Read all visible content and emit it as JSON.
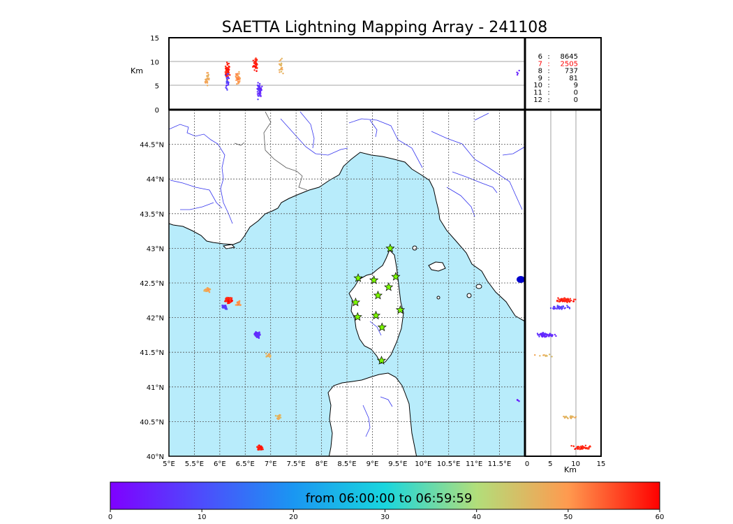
{
  "title": "SAETTA Lightning Mapping Array - 241108",
  "chart_data": [
    {
      "type": "scatter",
      "panel": "map",
      "x_ticks": [
        "5°E",
        "5.5°E",
        "6°E",
        "6.5°E",
        "7°E",
        "7.5°E",
        "8°E",
        "8.5°E",
        "9°E",
        "9.5°E",
        "10°E",
        "10.5°E",
        "11°E",
        "11.5°E"
      ],
      "y_ticks": [
        "40°N",
        "40.5°N",
        "41°N",
        "41.5°N",
        "42°N",
        "42.5°N",
        "43°N",
        "43.5°N",
        "44°N",
        "44.5°N"
      ],
      "xlim": [
        5,
        12
      ],
      "ylim": [
        40,
        45
      ],
      "grid": true,
      "stations": [
        {
          "lon": 9.35,
          "lat": 43.0
        },
        {
          "lon": 8.72,
          "lat": 42.57
        },
        {
          "lon": 9.03,
          "lat": 42.54
        },
        {
          "lon": 9.46,
          "lat": 42.59
        },
        {
          "lon": 9.11,
          "lat": 42.32
        },
        {
          "lon": 9.32,
          "lat": 42.44
        },
        {
          "lon": 8.67,
          "lat": 42.22
        },
        {
          "lon": 9.55,
          "lat": 42.11
        },
        {
          "lon": 8.71,
          "lat": 42.01
        },
        {
          "lon": 9.07,
          "lat": 42.03
        },
        {
          "lon": 9.19,
          "lat": 41.86
        },
        {
          "lon": 9.18,
          "lat": 41.38
        }
      ],
      "clusters": [
        {
          "lon": 5.75,
          "lat": 42.4,
          "minute": 48,
          "n": 30
        },
        {
          "lon": 6.18,
          "lat": 42.25,
          "minute": 58,
          "n": 80
        },
        {
          "lon": 6.1,
          "lat": 42.15,
          "minute": 8,
          "n": 25
        },
        {
          "lon": 6.38,
          "lat": 42.2,
          "minute": 50,
          "n": 20
        },
        {
          "lon": 6.75,
          "lat": 41.75,
          "minute": 6,
          "n": 90
        },
        {
          "lon": 6.95,
          "lat": 41.45,
          "minute": 47,
          "n": 12
        },
        {
          "lon": 7.15,
          "lat": 40.56,
          "minute": 46,
          "n": 15
        },
        {
          "lon": 6.78,
          "lat": 40.12,
          "minute": 58,
          "n": 50
        },
        {
          "lon": 11.85,
          "lat": 40.8,
          "minute": 5,
          "n": 3
        }
      ]
    },
    {
      "type": "scatter",
      "panel": "longitude-altitude",
      "ylabel": "Km",
      "y_ticks": [
        "0",
        "5",
        "10",
        "15"
      ],
      "ylim": [
        0,
        15
      ],
      "xlim": [
        5,
        12
      ],
      "clusters": [
        {
          "lon": 5.75,
          "alt": 6.5,
          "minute": 48,
          "n": 25
        },
        {
          "lon": 6.15,
          "alt": 8,
          "minute": 58,
          "n": 70
        },
        {
          "lon": 6.15,
          "alt": 6,
          "minute": 8,
          "n": 25
        },
        {
          "lon": 6.35,
          "alt": 7,
          "minute": 50,
          "n": 30
        },
        {
          "lon": 6.7,
          "alt": 9.5,
          "minute": 58,
          "n": 45
        },
        {
          "lon": 6.78,
          "alt": 4,
          "minute": 6,
          "n": 60
        },
        {
          "lon": 7.2,
          "alt": 9,
          "minute": 47,
          "n": 20
        },
        {
          "lon": 11.85,
          "alt": 8,
          "minute": 5,
          "n": 4
        }
      ]
    },
    {
      "type": "scatter",
      "panel": "altitude-latitude",
      "xlabel": "Km",
      "x_ticks": [
        "0",
        "5",
        "10",
        "15"
      ],
      "xlim": [
        0,
        15
      ],
      "ylim": [
        40,
        45
      ],
      "clusters": [
        {
          "alt": 8,
          "lat": 42.25,
          "minute": 58,
          "n": 90
        },
        {
          "alt": 7,
          "lat": 42.15,
          "minute": 8,
          "n": 40
        },
        {
          "alt": 4,
          "lat": 41.75,
          "minute": 6,
          "n": 60
        },
        {
          "alt": 4,
          "lat": 41.45,
          "minute": 47,
          "n": 10
        },
        {
          "alt": 9,
          "lat": 40.56,
          "minute": 46,
          "n": 20
        },
        {
          "alt": 11,
          "lat": 40.12,
          "minute": 58,
          "n": 50
        }
      ]
    }
  ],
  "stats": [
    {
      "label": "6",
      "value": "8645",
      "color": "#000000"
    },
    {
      "label": "7",
      "value": "2505",
      "color": "#ff0000"
    },
    {
      "label": "8",
      "value": "737",
      "color": "#000000"
    },
    {
      "label": "9",
      "value": "81",
      "color": "#000000"
    },
    {
      "label": "10",
      "value": "9",
      "color": "#000000"
    },
    {
      "label": "11",
      "value": "0",
      "color": "#000000"
    },
    {
      "label": "12",
      "value": "0",
      "color": "#000000"
    }
  ],
  "colorbar": {
    "label": "from 06:00:00 to 06:59:59",
    "ticks": [
      "0",
      "10",
      "20",
      "30",
      "40",
      "50",
      "60"
    ],
    "range": [
      0,
      60
    ]
  },
  "colors": {
    "sea": "#b8ecfb",
    "land": "#ffffff",
    "rivers": "#3333ee",
    "station": "#7cfc00"
  }
}
